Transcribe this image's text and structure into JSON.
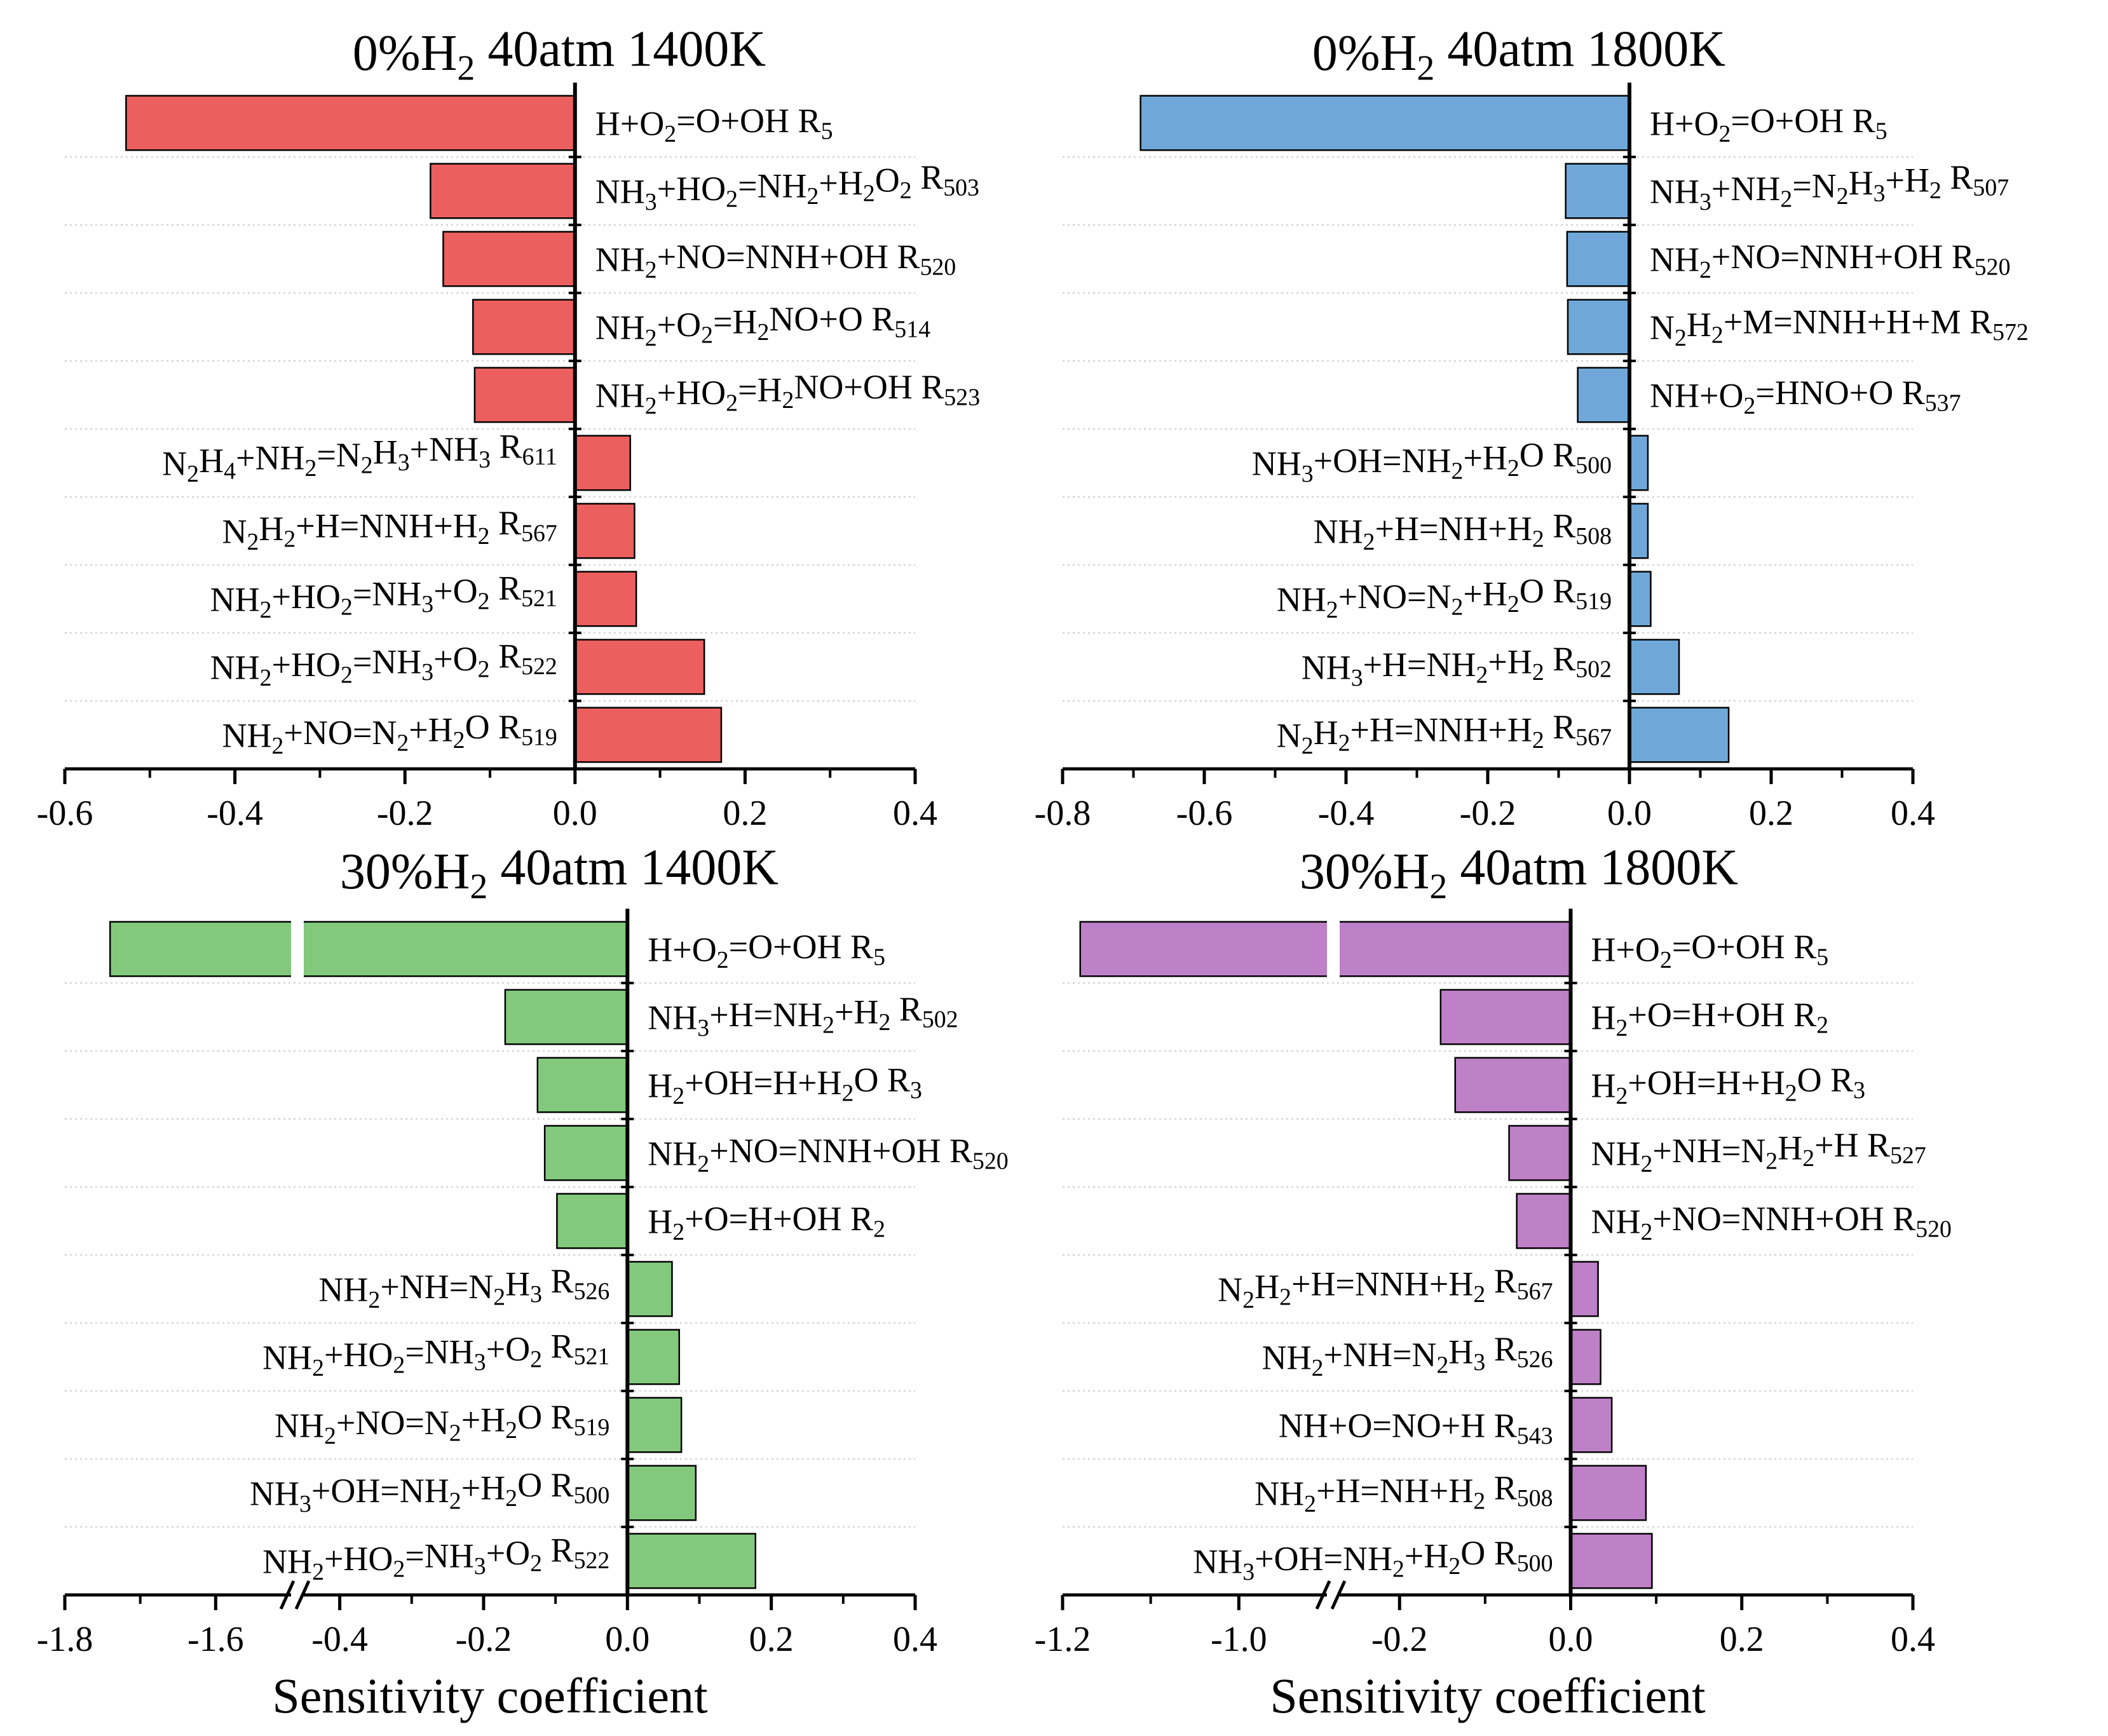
{
  "chart_data": [
    {
      "type": "bar",
      "orientation": "horizontal",
      "title": "0%H2 40atm 1400K",
      "title_parts": {
        "pre": "0%H",
        "sub": "2",
        "post": " 40atm 1400K"
      },
      "xlabel": "",
      "xlim": [
        -0.6,
        0.4
      ],
      "xticks": [
        -0.6,
        -0.4,
        -0.2,
        0.0,
        0.2,
        0.4
      ],
      "color": "#eb5f5f",
      "categories": [
        "H+O2=O+OH R5",
        "NH3+HO2=NH2+H2O2 R503",
        "NH2+NO=NNH+OH R520",
        "NH2+O2=H2NO+O R514",
        "NH2+HO2=H2NO+OH R523",
        "N2H4+NH2=N2H3+NH3 R611",
        "N2H2+H=NNH+H2 R567",
        "NH2+HO2=NH3+O2 R521",
        "NH2+HO2=NH3+O2 R522",
        "NH2+NO=N2+H2O R519"
      ],
      "values": [
        -0.528,
        -0.17,
        -0.155,
        -0.12,
        -0.118,
        0.065,
        0.07,
        0.072,
        0.152,
        0.172
      ]
    },
    {
      "type": "bar",
      "orientation": "horizontal",
      "title": "0%H2 40atm 1800K",
      "title_parts": {
        "pre": "0%H",
        "sub": "2",
        "post": " 40atm 1800K"
      },
      "xlabel": "",
      "xlim": [
        -0.8,
        0.4
      ],
      "xticks": [
        -0.8,
        -0.6,
        -0.4,
        -0.2,
        0.0,
        0.2,
        0.4
      ],
      "color": "#6fa8d8",
      "categories": [
        "H+O2=O+OH R5",
        "NH3+NH2=N2H3+H2 R507",
        "NH2+NO=NNH+OH R520",
        "N2H2+M=NNH+H+M R572",
        "NH+O2=HNO+O R537",
        "NH3+OH=NH2+H2O R500",
        "NH2+H=NH+H2 R508",
        "NH2+NO=N2+H2O R519",
        "NH3+H=NH2+H2 R502",
        "N2H2+H=NNH+H2 R567"
      ],
      "values": [
        -0.69,
        -0.09,
        -0.088,
        -0.087,
        -0.073,
        0.026,
        0.026,
        0.03,
        0.07,
        0.14
      ]
    },
    {
      "type": "bar",
      "orientation": "horizontal",
      "title": "30%H2 40atm 1400K",
      "title_parts": {
        "pre": "30%H",
        "sub": "2",
        "post": " 40atm 1400K"
      },
      "xlabel": "Sensitivity coefficient",
      "axis_break": true,
      "xlim": [
        -1.8,
        0.4
      ],
      "xticks": [
        -1.8,
        -1.6,
        -0.4,
        -0.2,
        0.0,
        0.2,
        0.4
      ],
      "color": "#82c97d",
      "categories": [
        "H+O2=O+OH R5",
        "NH3+H=NH2+H2 R502",
        "H2+OH=H+H2O R3",
        "NH2+NO=NNH+OH R520",
        "H2+O=H+OH R2",
        "NH2+NH=N2H3 R526",
        "NH2+HO2=NH3+O2 R521",
        "NH2+NO=N2+H2O R519",
        "NH3+OH=NH2+H2O R500",
        "NH2+HO2=NH3+O2 R522"
      ],
      "values": [
        -1.74,
        -0.17,
        -0.125,
        -0.115,
        -0.098,
        0.062,
        0.072,
        0.075,
        0.095,
        0.178
      ]
    },
    {
      "type": "bar",
      "orientation": "horizontal",
      "title": "30%H2 40atm 1800K",
      "title_parts": {
        "pre": "30%H",
        "sub": "2",
        "post": " 40atm 1800K"
      },
      "xlabel": "Sensitivity coefficient",
      "axis_break": true,
      "xlim": [
        -1.2,
        0.4
      ],
      "xticks": [
        -1.2,
        -1.0,
        -0.2,
        0.0,
        0.2,
        0.4
      ],
      "color": "#be80c6",
      "categories": [
        "H+O2=O+OH R5",
        "H2+O=H+OH R2",
        "H2+OH=H+H2O R3",
        "NH2+NH=N2H2+H R527",
        "NH2+NO=NNH+OH R520",
        "N2H2+H=NNH+H2 R567",
        "NH2+NH=N2H3 R526",
        "NH+O=NO+H R543",
        "NH2+H=NH+H2 R508",
        "NH3+OH=NH2+H2O R500"
      ],
      "values": [
        -1.18,
        -0.152,
        -0.135,
        -0.072,
        -0.063,
        0.032,
        0.035,
        0.048,
        0.088,
        0.095
      ]
    }
  ]
}
